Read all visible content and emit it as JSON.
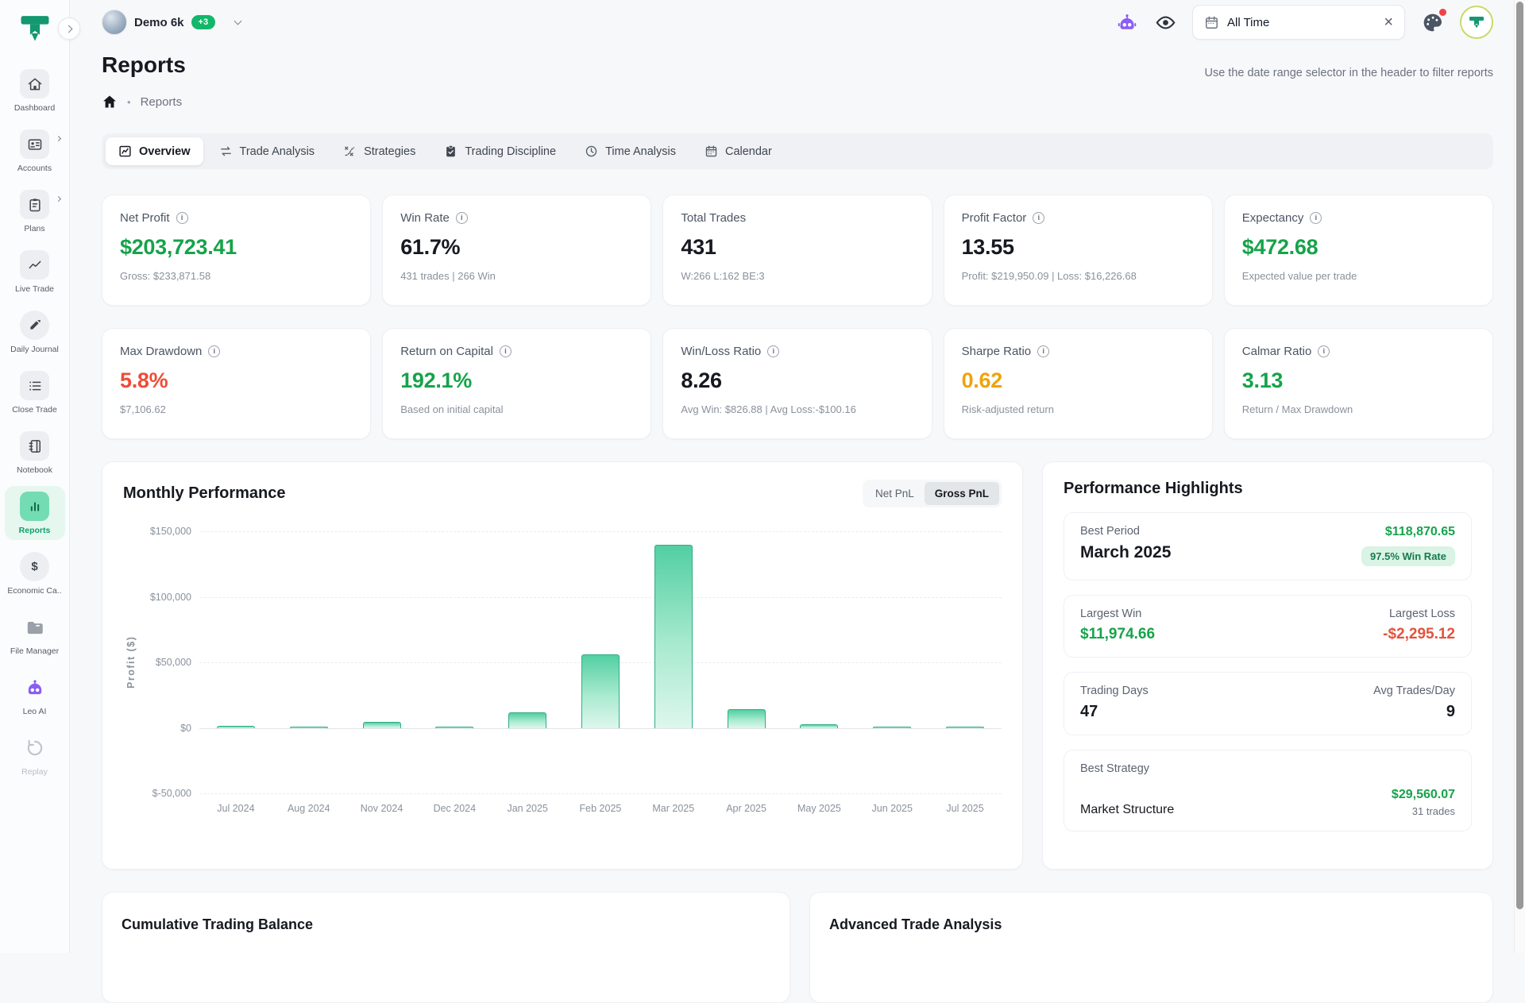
{
  "header": {
    "account_switcher": {
      "name": "Demo 6k",
      "badge": "+3"
    },
    "date_filter": {
      "value": "All Time"
    },
    "icons": [
      "leo-ai-robot-icon",
      "eye-icon",
      "calendar-icon",
      "clear-icon",
      "theme-palette-icon",
      "user-avatar"
    ]
  },
  "sidebar": {
    "items": [
      {
        "label": "Dashboard"
      },
      {
        "label": "Accounts",
        "has_submenu": true
      },
      {
        "label": "Plans",
        "has_submenu": true
      },
      {
        "label": "Live Trade"
      },
      {
        "label": "Daily Journal"
      },
      {
        "label": "Close Trade"
      },
      {
        "label": "Notebook"
      },
      {
        "label": "Reports",
        "active": true
      },
      {
        "label": "Economic Ca.."
      },
      {
        "label": "File Manager"
      },
      {
        "label": "Leo AI"
      },
      {
        "label": "Replay",
        "disabled": true
      }
    ]
  },
  "page": {
    "title": "Reports",
    "breadcrumb_current": "Reports",
    "helper_text": "Use the date range selector in the header to filter reports"
  },
  "tabs": [
    {
      "label": "Overview",
      "active": true
    },
    {
      "label": "Trade Analysis"
    },
    {
      "label": "Strategies"
    },
    {
      "label": "Trading Discipline"
    },
    {
      "label": "Time Analysis"
    },
    {
      "label": "Calendar"
    }
  ],
  "stat_cards": [
    {
      "label": "Net Profit",
      "info": true,
      "value": "$203,723.41",
      "color": "green",
      "sub": "Gross: $233,871.58"
    },
    {
      "label": "Win Rate",
      "info": true,
      "value": "61.7%",
      "color": "dark",
      "sub": "431 trades | 266 Win"
    },
    {
      "label": "Total Trades",
      "info": false,
      "value": "431",
      "color": "dark",
      "sub": "W:266 L:162 BE:3"
    },
    {
      "label": "Profit Factor",
      "info": true,
      "value": "13.55",
      "color": "dark",
      "sub": "Profit: $219,950.09 | Loss: $16,226.68"
    },
    {
      "label": "Expectancy",
      "info": true,
      "value": "$472.68",
      "color": "green",
      "sub": "Expected value per trade"
    },
    {
      "label": "Max Drawdown",
      "info": true,
      "value": "5.8%",
      "color": "red",
      "sub": "$7,106.62"
    },
    {
      "label": "Return on Capital",
      "info": true,
      "value": "192.1%",
      "color": "green",
      "sub": "Based on initial capital"
    },
    {
      "label": "Win/Loss Ratio",
      "info": true,
      "value": "8.26",
      "color": "dark",
      "sub": "Avg Win: $826.88 | Avg Loss:-$100.16"
    },
    {
      "label": "Sharpe Ratio",
      "info": true,
      "value": "0.62",
      "color": "orange",
      "sub": "Risk-adjusted return"
    },
    {
      "label": "Calmar Ratio",
      "info": true,
      "value": "3.13",
      "color": "green",
      "sub": "Return / Max Drawdown"
    }
  ],
  "value_colors": {
    "green": "#16a34a",
    "dark": "#16191f",
    "red": "#ee4d37",
    "orange": "#f0a30b"
  },
  "monthly_performance": {
    "title": "Monthly Performance",
    "toggle": {
      "options": [
        "Net PnL",
        "Gross PnL"
      ],
      "selected": "Gross PnL"
    }
  },
  "chart_data": {
    "type": "bar",
    "title": "Monthly Performance",
    "series_name": "Gross PnL",
    "xlabel": "",
    "ylabel": "Profit ($)",
    "categories": [
      "Jul 2024",
      "Aug 2024",
      "Nov 2024",
      "Dec 2024",
      "Jan 2025",
      "Feb 2025",
      "Mar 2025",
      "Apr 2025",
      "May 2025",
      "Jun 2025",
      "Jul 2025"
    ],
    "values": [
      1500,
      1000,
      4500,
      800,
      12000,
      56000,
      140000,
      14000,
      2500,
      800,
      700
    ],
    "ylim": [
      -50000,
      150000
    ],
    "yticks": [
      {
        "label": "$150,000",
        "value": 150000
      },
      {
        "label": "$100,000",
        "value": 100000
      },
      {
        "label": "$50,000",
        "value": 50000
      },
      {
        "label": "$0",
        "value": 0
      },
      {
        "label": "$-50,000",
        "value": -50000
      }
    ],
    "grid": "horizontal-dashed",
    "legend": "none",
    "bar_color_top": "#52cfa2",
    "bar_color_bottom": "#ddf7ec"
  },
  "highlights": {
    "title": "Performance Highlights",
    "best_period": {
      "label": "Best Period",
      "period": "March 2025",
      "amount": "$118,870.65",
      "badge": "97.5% Win Rate"
    },
    "largest_win": {
      "label": "Largest Win",
      "value": "$11,974.66"
    },
    "largest_loss": {
      "label": "Largest Loss",
      "value": "-$2,295.12"
    },
    "trading_days": {
      "label": "Trading Days",
      "value": "47"
    },
    "avg_trades_per_day": {
      "label": "Avg Trades/Day",
      "value": "9"
    },
    "best_strategy": {
      "label": "Best Strategy",
      "name": "Market Structure",
      "amount": "$29,560.07",
      "trades": "31 trades"
    }
  },
  "bottom_sections": {
    "left_title": "Cumulative Trading Balance",
    "right_title": "Advanced Trade Analysis"
  }
}
